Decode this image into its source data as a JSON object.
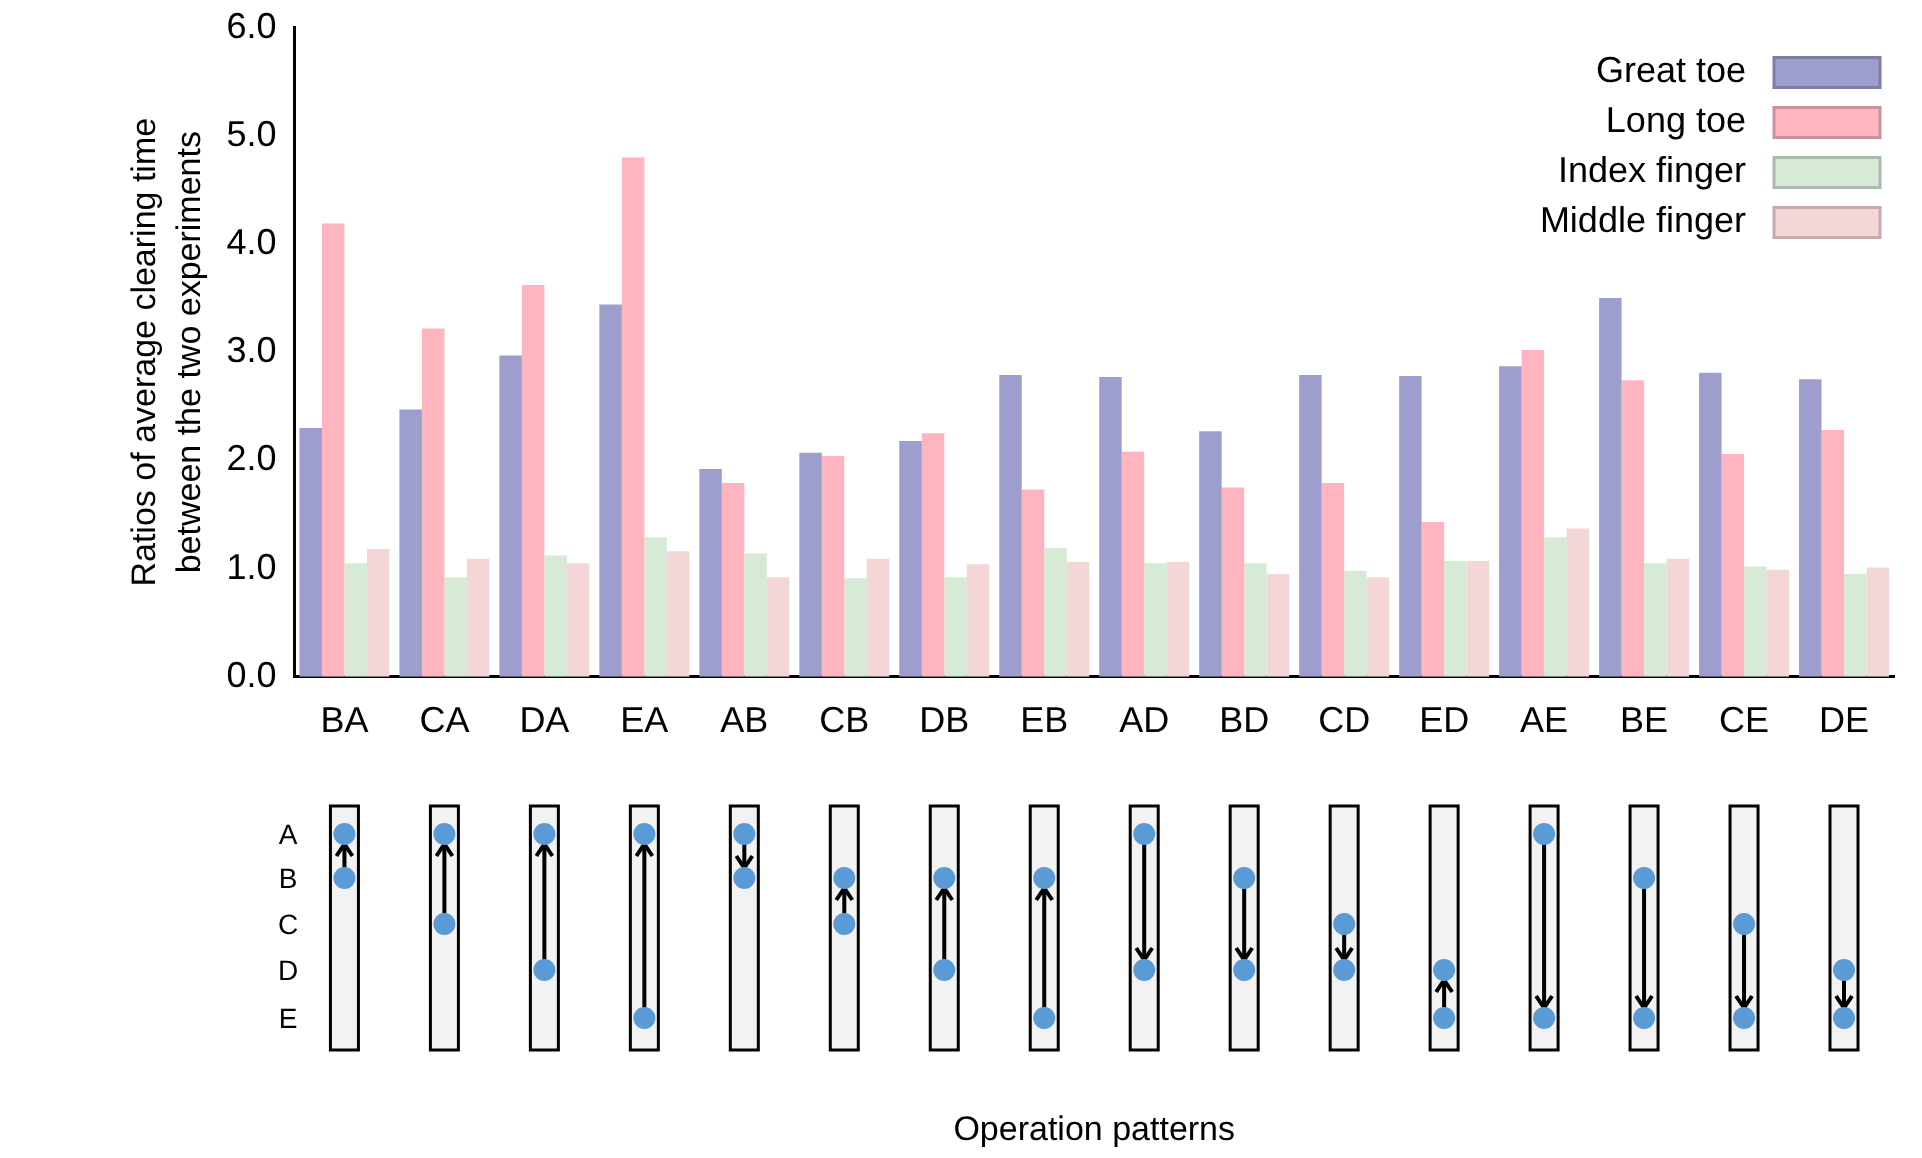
{
  "chart_data": {
    "type": "bar",
    "ylabel": "Ratios of average clearing time\nbetween the two experiments",
    "categories": [
      "BA",
      "CA",
      "DA",
      "EA",
      "AB",
      "CB",
      "DB",
      "EB",
      "AD",
      "BD",
      "CD",
      "ED",
      "AE",
      "BE",
      "CE",
      "DE"
    ],
    "series": [
      {
        "name": "Great toe",
        "color": "#9e9ece",
        "values": [
          2.3,
          2.47,
          2.97,
          3.44,
          1.92,
          2.07,
          2.18,
          2.79,
          2.77,
          2.27,
          2.79,
          2.78,
          2.87,
          3.5,
          2.81,
          2.75
        ]
      },
      {
        "name": "Long toe",
        "color": "#ffb5c0",
        "values": [
          4.19,
          3.22,
          3.62,
          4.8,
          1.79,
          2.04,
          2.25,
          1.73,
          2.08,
          1.75,
          1.79,
          1.43,
          3.02,
          2.74,
          2.06,
          2.28
        ]
      },
      {
        "name": "Index finger",
        "color": "#d6ead6",
        "values": [
          1.05,
          0.92,
          1.12,
          1.29,
          1.14,
          0.91,
          0.92,
          1.19,
          1.05,
          1.05,
          0.98,
          1.07,
          1.29,
          1.05,
          1.02,
          0.95
        ]
      },
      {
        "name": "Middle finger",
        "color": "#f5d6d6",
        "values": [
          1.18,
          1.09,
          1.05,
          1.16,
          0.92,
          1.09,
          1.04,
          1.06,
          1.06,
          0.95,
          0.92,
          1.07,
          1.37,
          1.09,
          0.99,
          1.01
        ]
      }
    ],
    "ylim": [
      0,
      6
    ],
    "yticks": [
      {
        "value": 0,
        "label": "0.0"
      },
      {
        "value": 1,
        "label": "1.0"
      },
      {
        "value": 2,
        "label": "2.0"
      },
      {
        "value": 3,
        "label": "3.0"
      },
      {
        "value": 4,
        "label": "4.0"
      },
      {
        "value": 5,
        "label": "5.0"
      },
      {
        "value": 6,
        "label": "6.0"
      }
    ],
    "grid": false,
    "legend": "top right",
    "annotations": [
      "A",
      "B",
      "C",
      "D",
      "E",
      "Operation patterns"
    ]
  }
}
